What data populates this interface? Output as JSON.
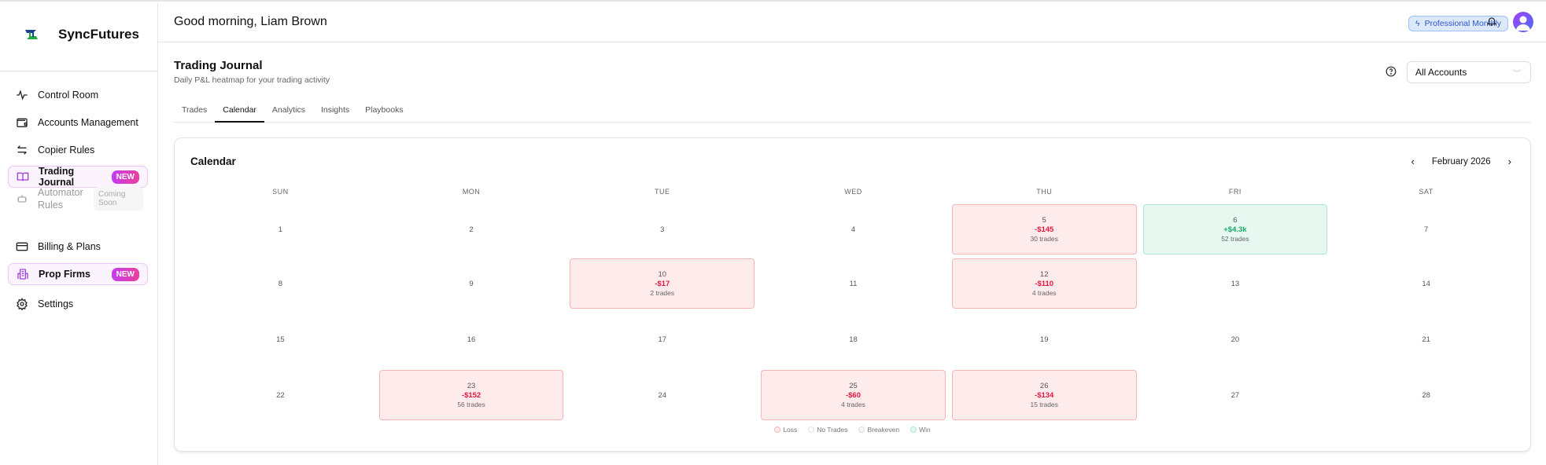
{
  "app": {
    "name": "SyncFutures"
  },
  "sidebar": {
    "items": [
      {
        "label": "Control Room",
        "icon": "activity-icon"
      },
      {
        "label": "Accounts Management",
        "icon": "wallet-icon"
      },
      {
        "label": "Copier Rules",
        "icon": "arrows-swap-icon"
      },
      {
        "label": "Trading Journal",
        "icon": "book-open-icon",
        "badge": "NEW",
        "active": true
      },
      {
        "label": "Automator Rules",
        "icon": "robot-icon",
        "badge": "Coming Soon",
        "disabled": true
      },
      {
        "label": "Billing & Plans",
        "icon": "credit-card-icon"
      },
      {
        "label": "Prop Firms",
        "icon": "building-icon",
        "badge": "NEW"
      },
      {
        "label": "Settings",
        "icon": "gear-icon"
      }
    ]
  },
  "header": {
    "greeting": "Good morning, Liam Brown",
    "plan": "Professional Monthly"
  },
  "page": {
    "title": "Trading Journal",
    "subtitle": "Daily P&L heatmap for your trading activity",
    "account_select": "All Accounts",
    "tabs": [
      "Trades",
      "Calendar",
      "Analytics",
      "Insights",
      "Playbooks"
    ],
    "active_tab": "Calendar"
  },
  "calendar": {
    "title": "Calendar",
    "month": "February 2026",
    "weekdays": [
      "SUN",
      "MON",
      "TUE",
      "WED",
      "THU",
      "FRI",
      "SAT"
    ],
    "days": [
      {
        "day": "1"
      },
      {
        "day": "2"
      },
      {
        "day": "3"
      },
      {
        "day": "4"
      },
      {
        "day": "5",
        "status": "loss",
        "pnl": "-$145",
        "trades": "30 trades"
      },
      {
        "day": "6",
        "status": "win",
        "pnl": "+$4.3k",
        "trades": "52 trades"
      },
      {
        "day": "7"
      },
      {
        "day": "8"
      },
      {
        "day": "9"
      },
      {
        "day": "10",
        "status": "loss",
        "pnl": "-$17",
        "trades": "2 trades"
      },
      {
        "day": "11"
      },
      {
        "day": "12",
        "status": "loss",
        "pnl": "-$110",
        "trades": "4 trades"
      },
      {
        "day": "13"
      },
      {
        "day": "14"
      },
      {
        "day": "15"
      },
      {
        "day": "16"
      },
      {
        "day": "17"
      },
      {
        "day": "18"
      },
      {
        "day": "19"
      },
      {
        "day": "20"
      },
      {
        "day": "21"
      },
      {
        "day": "22"
      },
      {
        "day": "23",
        "status": "loss",
        "pnl": "-$152",
        "trades": "56 trades"
      },
      {
        "day": "24"
      },
      {
        "day": "25",
        "status": "loss",
        "pnl": "-$60",
        "trades": "4 trades"
      },
      {
        "day": "26",
        "status": "loss",
        "pnl": "-$134",
        "trades": "15 trades"
      },
      {
        "day": "27"
      },
      {
        "day": "28"
      }
    ],
    "legend": [
      {
        "label": "Loss",
        "color": "#f8b4b4",
        "fill": "#feebeb"
      },
      {
        "label": "No Trades",
        "color": "#e3e3e3",
        "fill": "#ffffff"
      },
      {
        "label": "Breakeven",
        "color": "#dddddd",
        "fill": "#f7f7f7"
      },
      {
        "label": "Win",
        "color": "#a9e6cc",
        "fill": "#e7f8f1"
      }
    ]
  }
}
